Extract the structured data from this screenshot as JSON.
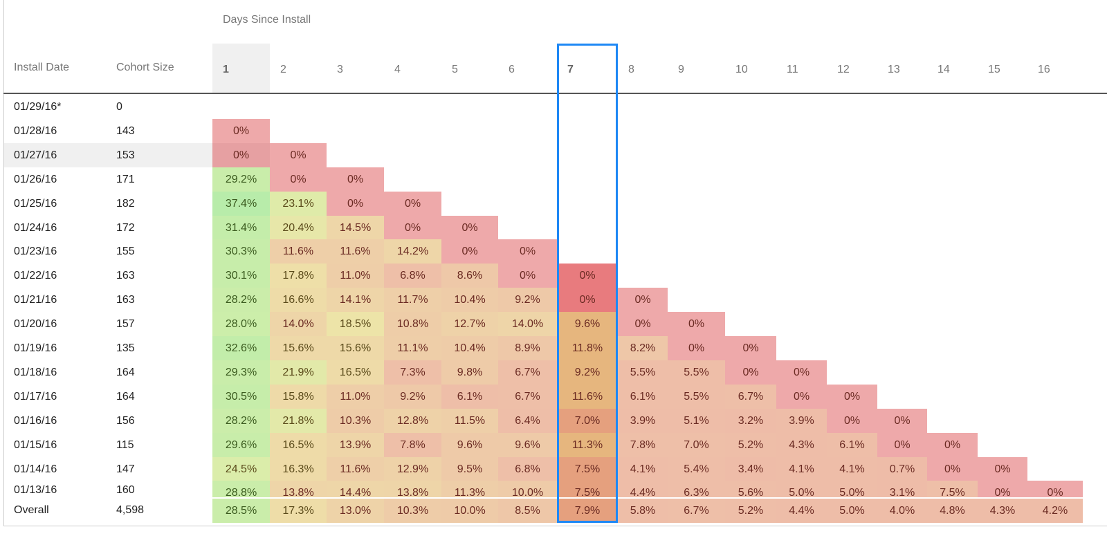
{
  "header": {
    "days_title": "Days Since Install",
    "install_date_label": "Install Date",
    "cohort_size_label": "Cohort Size",
    "selected_day": 7,
    "sorted_day": 1
  },
  "days": [
    "1",
    "2",
    "3",
    "4",
    "5",
    "6",
    "7",
    "8",
    "9",
    "10",
    "11",
    "12",
    "13",
    "14",
    "15",
    "16"
  ],
  "rows": [
    {
      "date": "01/29/16*",
      "size": "0",
      "values": []
    },
    {
      "date": "01/28/16",
      "size": "143",
      "values": [
        "0%"
      ]
    },
    {
      "date": "01/27/16",
      "size": "153",
      "values": [
        "0%",
        "0%"
      ],
      "hovered": true
    },
    {
      "date": "01/26/16",
      "size": "171",
      "values": [
        "29.2%",
        "0%",
        "0%"
      ]
    },
    {
      "date": "01/25/16",
      "size": "182",
      "values": [
        "37.4%",
        "23.1%",
        "0%",
        "0%"
      ]
    },
    {
      "date": "01/24/16",
      "size": "172",
      "values": [
        "31.4%",
        "20.4%",
        "14.5%",
        "0%",
        "0%"
      ]
    },
    {
      "date": "01/23/16",
      "size": "155",
      "values": [
        "30.3%",
        "11.6%",
        "11.6%",
        "14.2%",
        "0%",
        "0%"
      ]
    },
    {
      "date": "01/22/16",
      "size": "163",
      "values": [
        "30.1%",
        "17.8%",
        "11.0%",
        "6.8%",
        "8.6%",
        "0%",
        "0%"
      ]
    },
    {
      "date": "01/21/16",
      "size": "163",
      "values": [
        "28.2%",
        "16.6%",
        "14.1%",
        "11.7%",
        "10.4%",
        "9.2%",
        "0%",
        "0%"
      ]
    },
    {
      "date": "01/20/16",
      "size": "157",
      "values": [
        "28.0%",
        "14.0%",
        "18.5%",
        "10.8%",
        "12.7%",
        "14.0%",
        "9.6%",
        "0%",
        "0%"
      ]
    },
    {
      "date": "01/19/16",
      "size": "135",
      "values": [
        "32.6%",
        "15.6%",
        "15.6%",
        "11.1%",
        "10.4%",
        "8.9%",
        "11.8%",
        "8.2%",
        "0%",
        "0%"
      ]
    },
    {
      "date": "01/18/16",
      "size": "164",
      "values": [
        "29.3%",
        "21.9%",
        "16.5%",
        "7.3%",
        "9.8%",
        "6.7%",
        "9.2%",
        "5.5%",
        "5.5%",
        "0%",
        "0%"
      ]
    },
    {
      "date": "01/17/16",
      "size": "164",
      "values": [
        "30.5%",
        "15.8%",
        "11.0%",
        "9.2%",
        "6.1%",
        "6.7%",
        "11.6%",
        "6.1%",
        "5.5%",
        "6.7%",
        "0%",
        "0%"
      ]
    },
    {
      "date": "01/16/16",
      "size": "156",
      "values": [
        "28.2%",
        "21.8%",
        "10.3%",
        "12.8%",
        "11.5%",
        "6.4%",
        "7.0%",
        "3.9%",
        "5.1%",
        "3.2%",
        "3.9%",
        "0%",
        "0%"
      ]
    },
    {
      "date": "01/15/16",
      "size": "115",
      "values": [
        "29.6%",
        "16.5%",
        "13.9%",
        "7.8%",
        "9.6%",
        "9.6%",
        "11.3%",
        "7.8%",
        "7.0%",
        "5.2%",
        "4.3%",
        "6.1%",
        "0%",
        "0%"
      ]
    },
    {
      "date": "01/14/16",
      "size": "147",
      "values": [
        "24.5%",
        "16.3%",
        "11.6%",
        "12.9%",
        "9.5%",
        "6.8%",
        "7.5%",
        "4.1%",
        "5.4%",
        "3.4%",
        "4.1%",
        "4.1%",
        "0.7%",
        "0%",
        "0%"
      ]
    },
    {
      "date": "01/13/16",
      "size": "160",
      "values": [
        "28.8%",
        "13.8%",
        "14.4%",
        "13.8%",
        "11.3%",
        "10.0%",
        "7.5%",
        "4.4%",
        "6.3%",
        "5.6%",
        "5.0%",
        "5.0%",
        "3.1%",
        "7.5%",
        "0%",
        "0%"
      ]
    }
  ],
  "overall": {
    "label": "Overall",
    "size": "4,598",
    "values": [
      "28.5%",
      "17.3%",
      "13.0%",
      "10.3%",
      "10.0%",
      "8.5%",
      "7.9%",
      "5.8%",
      "6.7%",
      "5.2%",
      "4.4%",
      "5.0%",
      "4.0%",
      "4.8%",
      "4.3%",
      "4.2%"
    ]
  },
  "colors": {
    "selection_border": "#1e88f5",
    "zero": "#eea9aa",
    "low": "#eebca8",
    "mid": "#eedfa8",
    "high": "#c3eeaa",
    "header_sorted_bg": "#f0f0f0"
  }
}
